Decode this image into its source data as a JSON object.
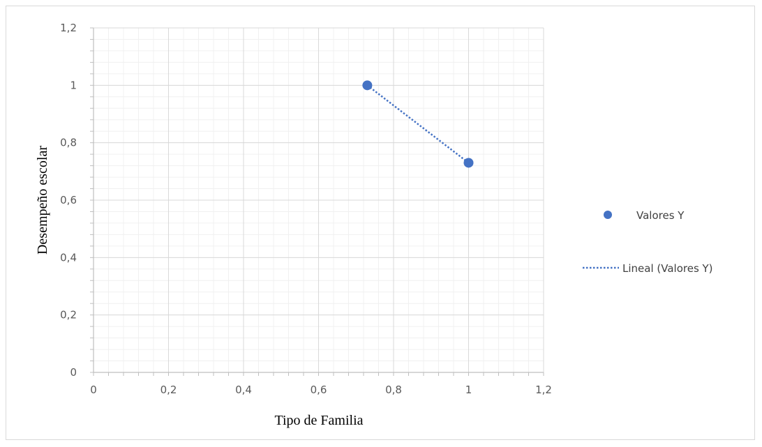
{
  "colors": {
    "series": "#4472c4",
    "trendline": "#4472c4",
    "major_grid": "#d9d9d9",
    "minor_grid": "#f0f0f0",
    "axis": "#bfbfbf",
    "tick_text": "#595959"
  },
  "chart_data": {
    "type": "scatter",
    "title": "",
    "xlabel": "Tipo de Familia",
    "ylabel": "Desempeño escolar",
    "xlim": [
      0,
      1.2
    ],
    "ylim": [
      0,
      1.2
    ],
    "x_ticks": [
      "0",
      "0,2",
      "0,4",
      "0,6",
      "0,8",
      "1",
      "1,2"
    ],
    "y_ticks": [
      "0",
      "0,2",
      "0,4",
      "0,6",
      "0,8",
      "1",
      "1,2"
    ],
    "x_tick_values": [
      0,
      0.2,
      0.4,
      0.6,
      0.8,
      1.0,
      1.2
    ],
    "y_tick_values": [
      0,
      0.2,
      0.4,
      0.6,
      0.8,
      1.0,
      1.2
    ],
    "grid": "major and minor",
    "legend_position": "right",
    "series": [
      {
        "name": "Valores Y",
        "marker": "circle",
        "points": [
          {
            "x": 0.73,
            "y": 1.0
          },
          {
            "x": 1.0,
            "y": 0.73
          }
        ]
      }
    ],
    "trendlines": [
      {
        "name": "Lineal (Valores Y)",
        "style": "dotted",
        "from": {
          "x": 0.73,
          "y": 1.0
        },
        "to": {
          "x": 1.0,
          "y": 0.73
        }
      }
    ]
  }
}
